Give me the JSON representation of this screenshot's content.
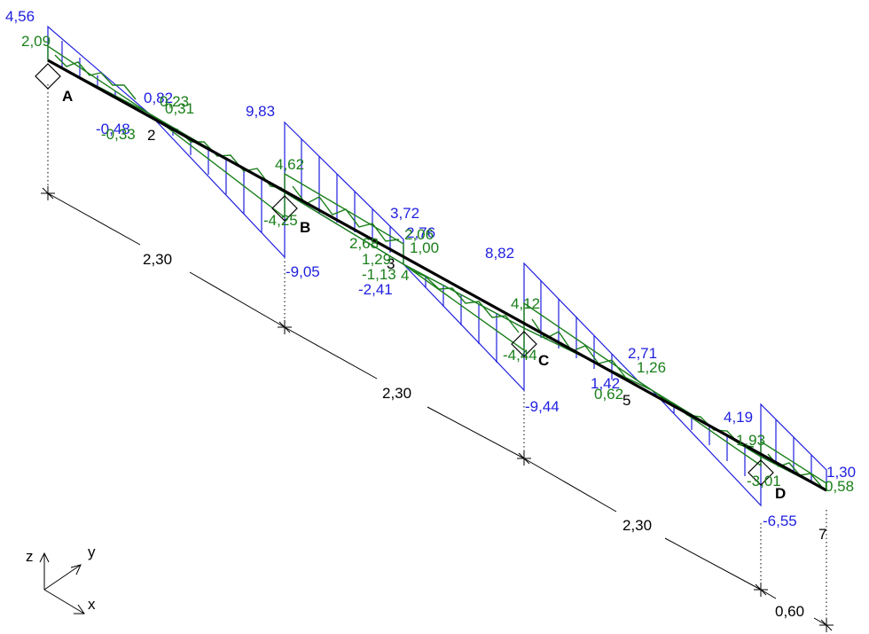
{
  "supports": [
    "A",
    "B",
    "C",
    "D"
  ],
  "nodes": [
    "2",
    "3",
    "5",
    "7"
  ],
  "dimensions": [
    "2,30",
    "2,30",
    "2,30",
    "0,60"
  ],
  "axes": {
    "x": "x",
    "y": "y",
    "z": "z"
  },
  "blue_values": {
    "A_top": "4,56",
    "n2_top": "0,82",
    "n2_bottom": "-0,48",
    "B_top": "9,83",
    "B_bottom": "-9,05",
    "n3_top": "3,72",
    "n3_top2": "2,76",
    "n3_bottom": "-2,41",
    "C_top": "8,82",
    "C_bottom": "-9,44",
    "n5_top": "2,71",
    "n5_left": "1,42",
    "D_top": "4,19",
    "D_bottom": "-6,55",
    "n7_top": "1,30"
  },
  "green_values": {
    "A_top": "2,09",
    "n2_top": "0,31",
    "n2_top2": "0,23",
    "n2_bottom": "-0,33",
    "B_top": "4,62",
    "B_bottom": "-4,25",
    "n3_top": "2,06",
    "n3_top2": "1,00",
    "n3_left": "2,68",
    "n3_left2": "1,29",
    "n3_bottom": "-1,13",
    "n3_sub": "4",
    "C_top": "4,12",
    "C_bottom": "-4,44",
    "n5_top": "1,26",
    "n5_left": "0,62",
    "D_top": "1,93",
    "D_bottom": "-3,01",
    "n7_top": "0,58"
  },
  "colors": {
    "moment_blue": "#1f1fe0",
    "moment_green": "#1a7f1a",
    "beam": "#000000"
  }
}
